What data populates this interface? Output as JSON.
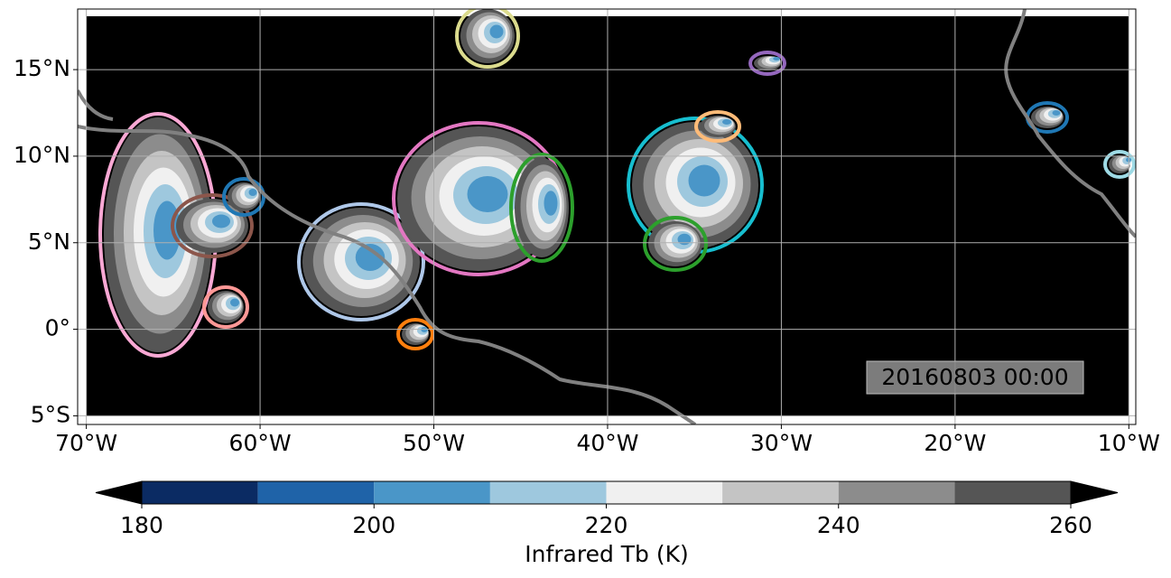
{
  "map": {
    "xlim": [
      -70.5,
      -9.6
    ],
    "ylim": [
      -5.5,
      18.5
    ],
    "xticks": [
      {
        "value": -70,
        "label": "70°W"
      },
      {
        "value": -60,
        "label": "60°W"
      },
      {
        "value": -50,
        "label": "50°W"
      },
      {
        "value": -40,
        "label": "40°W"
      },
      {
        "value": -30,
        "label": "30°W"
      },
      {
        "value": -20,
        "label": "20°W"
      },
      {
        "value": -10,
        "label": "10°W"
      }
    ],
    "yticks": [
      {
        "value": 15,
        "label": "15°N"
      },
      {
        "value": 10,
        "label": "10°N"
      },
      {
        "value": 5,
        "label": "5°N"
      },
      {
        "value": 0,
        "label": "0°"
      },
      {
        "value": -5,
        "label": "5°S"
      }
    ],
    "grid": true,
    "annotation": "20160803 00:00",
    "colorbar": {
      "label": "Infrared Tb (K)",
      "levels": [
        180,
        190,
        200,
        210,
        220,
        230,
        240,
        250,
        260
      ],
      "colors": [
        "#0b2b63",
        "#1f63a8",
        "#4a96c8",
        "#9ec8de",
        "#f0f0f0",
        "#c4c4c4",
        "#8c8c8c",
        "#555555"
      ],
      "under_color": "#000000",
      "over_color": "#000000",
      "ticks": [
        180,
        200,
        220,
        240,
        260
      ]
    }
  }
}
